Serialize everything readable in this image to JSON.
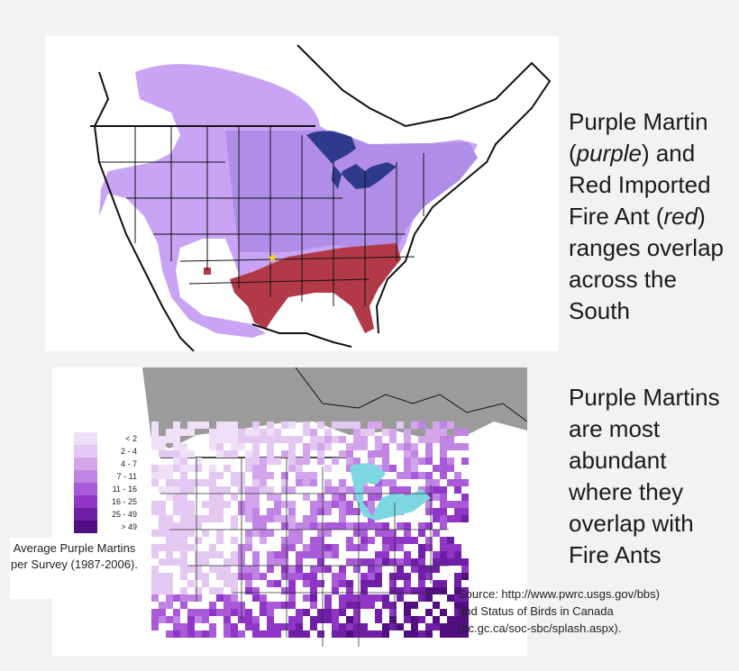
{
  "top_map": {
    "caption_line1": "Purple Martin",
    "caption_purple_word": "purple",
    "caption_line2_rest": ") and",
    "caption_line3": "Red Imported",
    "caption_line4_a": "Fire Ant (",
    "caption_red_word": "red",
    "caption_line4_b": ")",
    "caption_line5": "ranges overlap",
    "caption_line6": "across the",
    "caption_line7": "South",
    "colors": {
      "purple_range": "#c9a4f5",
      "red_range": "#b23a48",
      "great_lakes": "#2e3a8c",
      "state_lines": "#111111",
      "marker": "#f7d51a"
    },
    "marker_icon": "star-icon"
  },
  "bottom_map": {
    "caption_lines": [
      "Purple Martins",
      "are most",
      "abundant",
      "where they",
      "overlap with",
      "Fire Ants"
    ],
    "legend_title": "Average Purple Martins per Survey (1987-2006).",
    "legend": [
      {
        "label": "< 2",
        "color": "#efe0f7"
      },
      {
        "label": "2 - 4",
        "color": "#e3c8f2"
      },
      {
        "label": "4 - 7",
        "color": "#d3a6ec"
      },
      {
        "label": "7 - 11",
        "color": "#c084e4"
      },
      {
        "label": "11 - 16",
        "color": "#a85ad8"
      },
      {
        "label": "16 - 25",
        "color": "#8f36c7"
      },
      {
        "label": "25 - 49",
        "color": "#6f1ea6"
      },
      {
        "label": "> 49",
        "color": "#4f0f80"
      }
    ],
    "colors": {
      "no_data": "#9b9b9b",
      "water": "#7fd6e3"
    }
  },
  "source": {
    "line1": "Source: http://www.pwrc.usgs.gov/bbs)",
    "line2": "and Status of Birds in Canada",
    "line3": "(ec.gc.ca/soc-sbc/splash.aspx)."
  }
}
